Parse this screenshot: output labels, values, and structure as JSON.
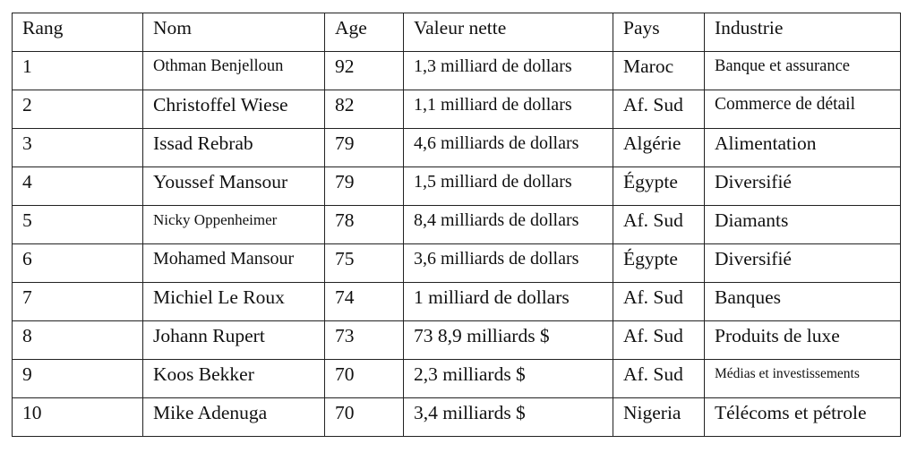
{
  "headers": [
    "Rang",
    "Nom",
    "Age",
    "Valeur nette",
    "Pays",
    "Industrie"
  ],
  "rows": [
    [
      "1",
      "Othman Benjelloun",
      "92",
      "1,3 milliard de dollars",
      "Maroc",
      "Banque et assurance"
    ],
    [
      "2",
      "Christoffel Wiese",
      "82",
      "1,1 milliard de dollars",
      "Af. Sud",
      "Commerce de détail"
    ],
    [
      "3",
      "Issad Rebrab",
      "79",
      "4,6 milliards de dollars",
      "Algérie",
      "Alimentation"
    ],
    [
      "4",
      "Youssef Mansour",
      "79",
      "1,5 milliard de dollars",
      "Égypte",
      "Diversifié"
    ],
    [
      "5",
      "Nicky Oppenheimer",
      "78",
      "8,4 milliards de dollars",
      "Af. Sud",
      "Diamants"
    ],
    [
      "6",
      "Mohamed Mansour",
      "75",
      "3,6 milliards de dollars",
      "Égypte",
      "Diversifié"
    ],
    [
      "7",
      "Michiel Le Roux",
      "74",
      "1 milliard de dollars",
      "Af. Sud",
      "Banques"
    ],
    [
      "8",
      "Johann Rupert",
      "73",
      "73 8,9 milliards $",
      "Af. Sud",
      "Produits de luxe"
    ],
    [
      "9",
      "Koos Bekker",
      "70",
      "2,3 milliards $",
      "Af. Sud",
      "Médias et investissements"
    ],
    [
      "10",
      "Mike Adenuga",
      "70",
      "3,4 milliards $",
      "Nigeria",
      "Télécoms et pétrole"
    ]
  ]
}
